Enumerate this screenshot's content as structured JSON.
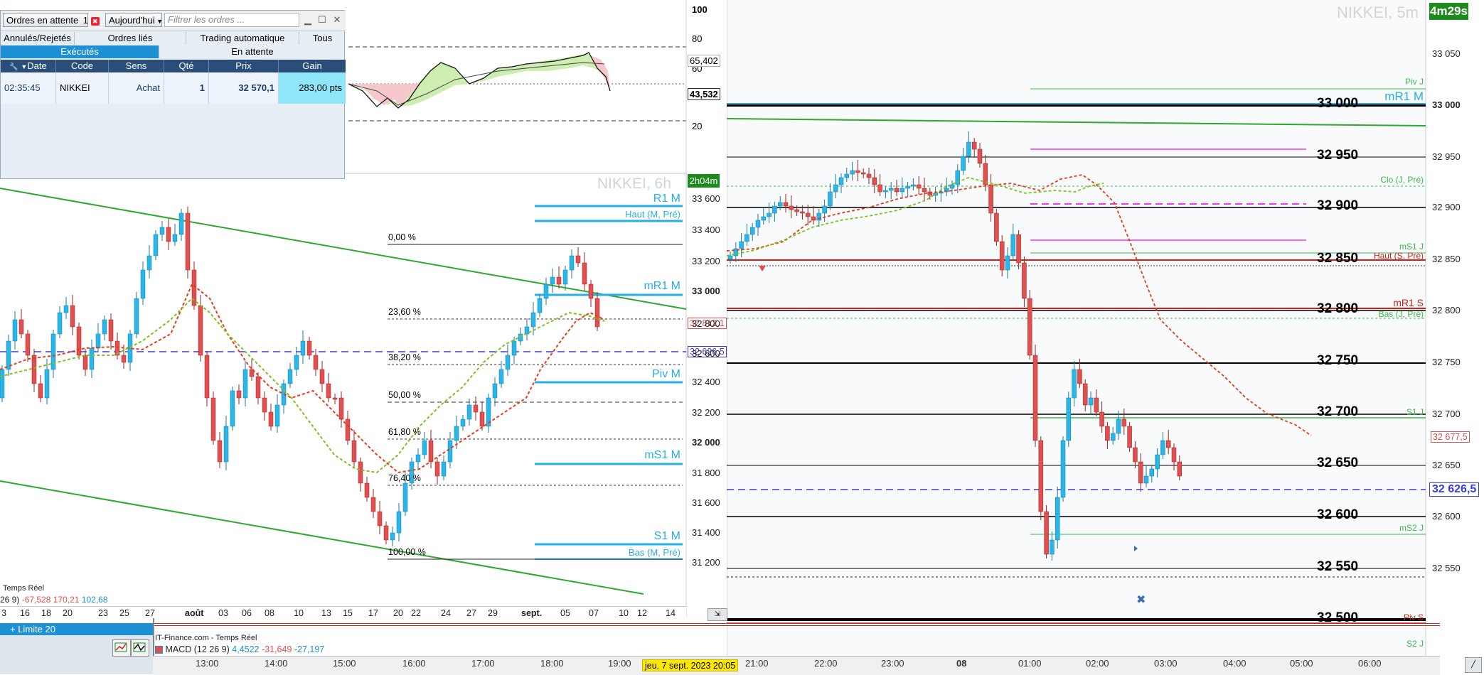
{
  "orders_panel": {
    "title_button": "Ordres en attente",
    "count": "1",
    "period_button": "Aujourd'hui",
    "filter_placeholder": "Filtrer les ordres ...",
    "tabs": [
      "Annulés/Rejetés",
      "Ordres liés",
      "Trading automatique",
      "Tous"
    ],
    "subtabs": [
      "Exécutés",
      "En attente"
    ],
    "columns": [
      "Date",
      "Code",
      "Sens",
      "Qté",
      "Prix",
      "Gain"
    ],
    "rows": [
      {
        "date": "02:35:45",
        "code": "NIKKEI",
        "sens": "Achat",
        "qte": "1",
        "prix": "32 570,1",
        "gain": "283,00 pts"
      }
    ]
  },
  "oscillator_panel": {
    "levels": [
      "100",
      "80",
      "60",
      "20"
    ],
    "value_markers": [
      "65,402",
      "43,532"
    ]
  },
  "left_chart": {
    "instrument": "NIKKEI, 6h",
    "timer": "2h04m",
    "fib_labels": [
      "0,00 %",
      "23,60 %",
      "38,20 %",
      "50,00 %",
      "61,80 %",
      "76,40 %",
      "100,00 %"
    ],
    "pivot_labels": [
      "R1 M",
      "Haut (M, Pré)",
      "mR1 M",
      "Piv M",
      "mS1 M",
      "S1 M",
      "Bas (M, Pré)"
    ],
    "price_axis": [
      "33 600",
      "33 400",
      "33 200",
      "33 000",
      "32 800",
      "32 600",
      "32 400",
      "32 200",
      "32 000",
      "31 800",
      "31 600",
      "31 400",
      "31 200"
    ],
    "price_markers": [
      "32 812,1",
      "32 626,5"
    ],
    "date_axis": [
      "3",
      "16",
      "18",
      "20",
      "23",
      "25",
      "27",
      "août",
      "03",
      "06",
      "08",
      "10",
      "13",
      "15",
      "17",
      "20",
      "22",
      "24",
      "27",
      "29",
      "sept.",
      "05",
      "07",
      "10",
      "12",
      "14"
    ],
    "footer_label": "Temps Réel",
    "macd_values": {
      "prefix": "26 9)",
      "v1": "-67,528",
      "v2": "170,21",
      "v3": "102,68"
    }
  },
  "right_chart": {
    "instrument": "NIKKEI, 5m",
    "timer": "4m29s",
    "price_axis": [
      "33 050",
      "33 000",
      "32 950",
      "32 900",
      "32 850",
      "32 800",
      "32 750",
      "32 700",
      "32 650",
      "32 600",
      "32 550"
    ],
    "round_levels": [
      "33 000",
      "32 950",
      "32 900",
      "32 850",
      "32 800",
      "32 750",
      "32 700",
      "32 650",
      "32 600",
      "32 550",
      "32 500"
    ],
    "pivot_labels": [
      "Piv J",
      "mR1 M",
      "Clo (J, Pré)",
      "mS1 J",
      "Haut (S, Pré)",
      "mR1 S",
      "Bas (J, Pré)",
      "S1 J",
      "mS2 J",
      "Piv S",
      "S2 J"
    ],
    "price_markers": [
      "32 677,5",
      "32 626,5"
    ],
    "time_axis": [
      "21:00",
      "22:00",
      "23:00",
      "08",
      "01:00",
      "02:00",
      "03:00",
      "04:00",
      "05:00",
      "06:00"
    ]
  },
  "bottom_panel": {
    "order_button": "+ Limite 20",
    "source_label": "IT-Finance.com - Temps Réel",
    "indicator_name": "MACD (12 26 9)",
    "indicator_values": [
      "4,4522",
      "-31,649",
      "-27,197"
    ],
    "time_axis": [
      "13:00",
      "14:00",
      "15:00",
      "16:00",
      "17:00",
      "18:00",
      "19:00"
    ],
    "cursor_date": "jeu. 7 sept. 2023 20:05"
  },
  "colors": {
    "bull": "#29b6e8",
    "bear": "#e05050",
    "pivot_blue": "#27b0e6",
    "channel_green": "#2ea82e",
    "price_line": "#3a3ae0",
    "accent_green": "#2e8b2e"
  }
}
